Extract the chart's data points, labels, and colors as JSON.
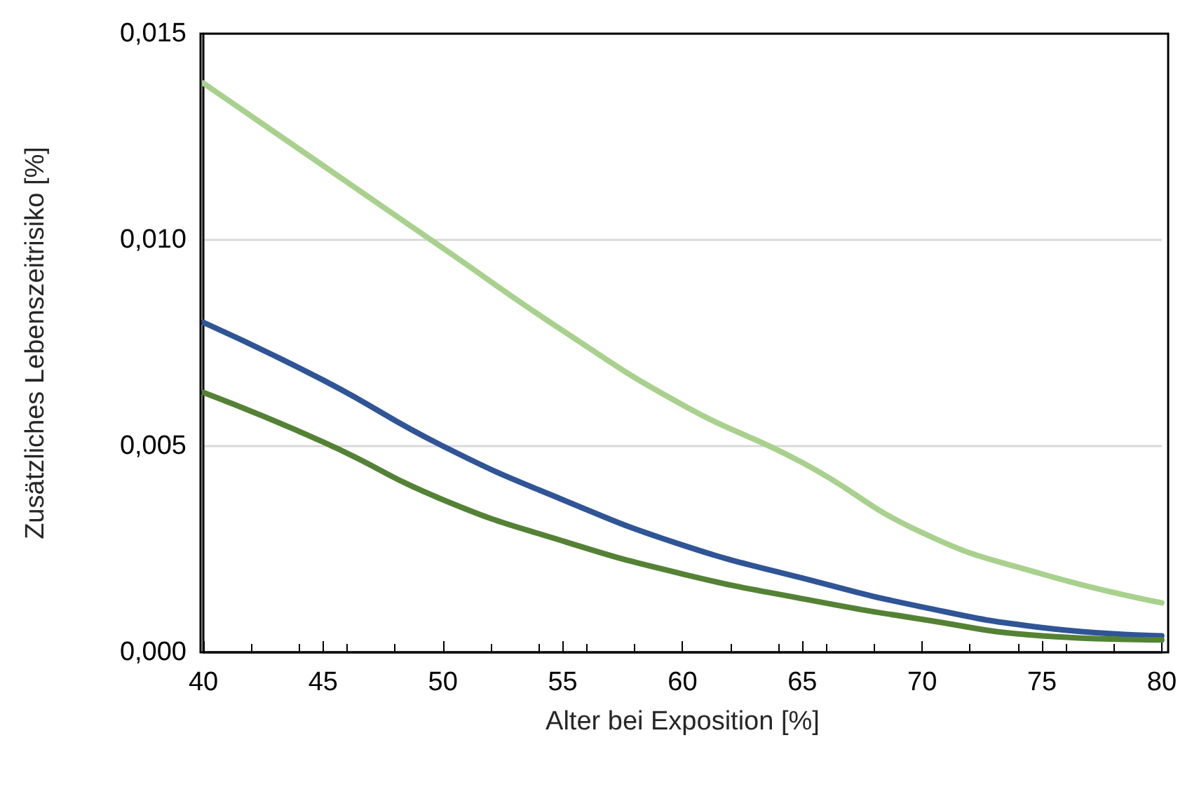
{
  "chart_data": {
    "type": "line",
    "xlabel": "Alter bei Exposition [%]",
    "ylabel": "Zusätzliches Lebenszeitrisiko [%]",
    "x": [
      40,
      45,
      50,
      55,
      60,
      65,
      70,
      75,
      80
    ],
    "series": [
      {
        "color": "#a9d18e",
        "values": [
          0.0138,
          0.0118,
          0.0098,
          0.0078,
          0.006,
          0.0046,
          0.0029,
          0.0019,
          0.0012
        ]
      },
      {
        "color": "#2f5597",
        "values": [
          0.008,
          0.0066,
          0.005,
          0.0037,
          0.0026,
          0.0018,
          0.0011,
          0.0006,
          0.0004
        ]
      },
      {
        "color": "#548235",
        "values": [
          0.0063,
          0.0051,
          0.0037,
          0.0027,
          0.0019,
          0.0013,
          0.0008,
          0.0004,
          0.0003
        ]
      }
    ],
    "xlim": [
      40,
      80
    ],
    "xticks": [
      40,
      45,
      50,
      55,
      60,
      65,
      70,
      75,
      80
    ],
    "ylim": [
      0,
      0.015
    ],
    "yticks": [
      {
        "value": 0,
        "label": "0,000"
      },
      {
        "value": 0.005,
        "label": "0,005"
      },
      {
        "value": 0.01,
        "label": "0,010"
      },
      {
        "value": 0.015,
        "label": "0,015"
      }
    ],
    "grid": "y",
    "marker": "none",
    "line_style": "solid"
  }
}
